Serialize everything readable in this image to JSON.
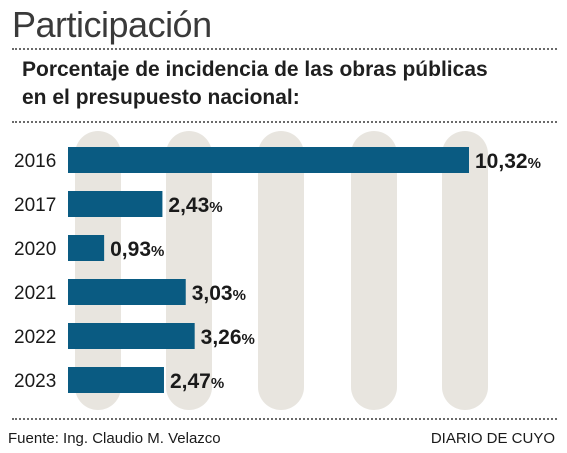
{
  "header": {
    "title": "Participación",
    "subtitle_line1": "Porcentaje de incidencia de las obras públicas",
    "subtitle_line2": "en el presupuesto nacional:"
  },
  "colors": {
    "bar": "#0a5b82",
    "column": "#e8e5df",
    "text": "#1a1a1a"
  },
  "chart_data": {
    "type": "bar",
    "orientation": "horizontal",
    "categories": [
      "2016",
      "2017",
      "2020",
      "2021",
      "2022",
      "2023"
    ],
    "values": [
      10.32,
      2.43,
      0.93,
      3.03,
      3.26,
      2.47
    ],
    "value_labels": [
      "10,32",
      "2,43",
      "0,93",
      "3,03",
      "3,26",
      "2,47"
    ],
    "unit": "%",
    "xlim": [
      0,
      10.32
    ],
    "grid": "background columns"
  },
  "footer": {
    "source": "Fuente: Ing. Claudio M. Velazco",
    "brand": "DIARIO DE CUYO"
  }
}
